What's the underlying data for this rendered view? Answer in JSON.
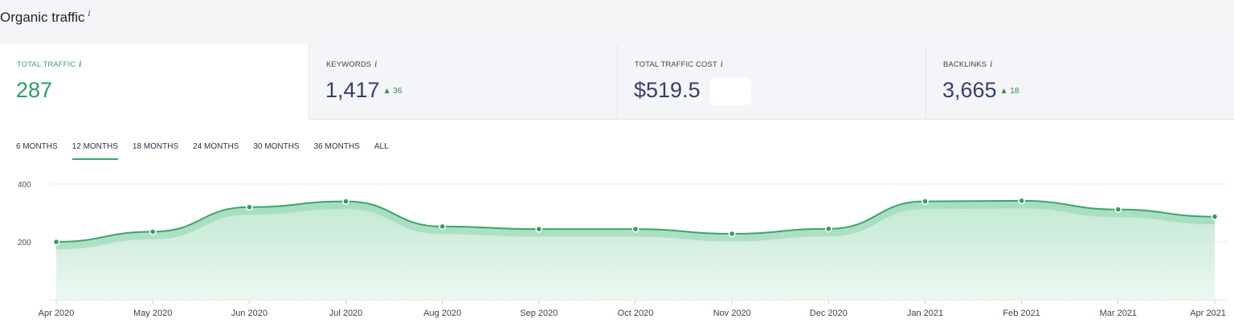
{
  "header": {
    "title": "Organic traffic",
    "info_icon": "i"
  },
  "metrics": [
    {
      "label": "TOTAL TRAFFIC",
      "value": "287",
      "delta": "",
      "active": true
    },
    {
      "label": "KEYWORDS",
      "value": "1,417",
      "delta": "▲ 36",
      "active": false
    },
    {
      "label": "TOTAL TRAFFIC COST",
      "value": "$519.5",
      "delta": "",
      "active": false
    },
    {
      "label": "BACKLINKS",
      "value": "3,665",
      "delta": "▲ 18",
      "active": false
    }
  ],
  "range_tabs": [
    "6 MONTHS",
    "12 MONTHS",
    "18 MONTHS",
    "24 MONTHS",
    "30 MONTHS",
    "36 MONTHS",
    "ALL"
  ],
  "selected_range": "12 MONTHS",
  "colors": {
    "accent": "#2e9e5e",
    "line": "#3aa56b",
    "fill": "#c9ecd9"
  },
  "chart_data": {
    "type": "area",
    "x": [
      "Apr 2020",
      "May 2020",
      "Jun 2020",
      "Jul 2020",
      "Aug 2020",
      "Sep 2020",
      "Oct 2020",
      "Nov 2020",
      "Dec 2020",
      "Jan 2021",
      "Feb 2021",
      "Mar 2021",
      "Apr 2021"
    ],
    "series": [
      {
        "values": [
          200,
          235,
          320,
          340,
          253,
          244,
          244,
          228,
          245,
          340,
          342,
          312,
          287
        ]
      }
    ],
    "yticks": [
      200,
      400
    ],
    "ylim": [
      0,
      400
    ],
    "grid": true
  }
}
